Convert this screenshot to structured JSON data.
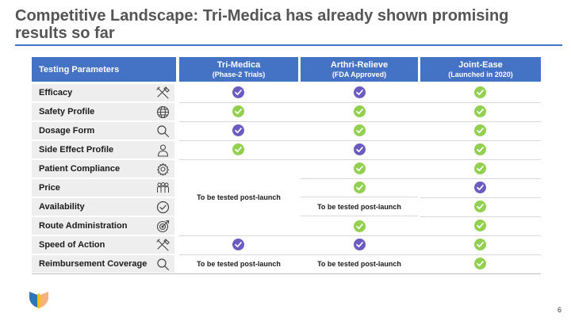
{
  "slide": {
    "title": "Competitive Landscape: Tri-Medica has already shown promising results so far",
    "page_number": "6"
  },
  "table": {
    "param_header": "Testing Parameters",
    "columns": [
      {
        "name": "Tri-Medica",
        "sub": "(Phase-2 Trials)"
      },
      {
        "name": "Arthri-Relieve",
        "sub": "(FDA Approved)"
      },
      {
        "name": "Joint-Ease",
        "sub": "(Launched in 2020)"
      }
    ],
    "rows": [
      {
        "label": "Efficacy",
        "icon": "tools-icon",
        "cells": [
          "purple-check",
          "purple-check",
          "green-check"
        ]
      },
      {
        "label": "Safety Profile",
        "icon": "globe-icon",
        "cells": [
          "green-check",
          "green-check",
          "green-check"
        ]
      },
      {
        "label": "Dosage Form",
        "icon": "magnifier-icon",
        "cells": [
          "purple-check",
          "green-check",
          "green-check"
        ]
      },
      {
        "label": "Side Effect Profile",
        "icon": "person-icon",
        "cells": [
          "green-check",
          "purple-check",
          "green-check"
        ]
      },
      {
        "label": "Patient Compliance",
        "icon": "gear-icon",
        "cells": [
          "note",
          "green-check",
          "green-check"
        ]
      },
      {
        "label": "Price",
        "icon": "people-icon",
        "cells": [
          "note",
          "green-check",
          "purple-check"
        ]
      },
      {
        "label": "Availability",
        "icon": "check-circle-icon",
        "cells": [
          "note",
          "note",
          "green-check"
        ]
      },
      {
        "label": "Route Administration",
        "icon": "target-icon",
        "cells": [
          "note",
          "green-check",
          "green-check"
        ]
      },
      {
        "label": "Speed of Action",
        "icon": "tools-icon",
        "cells": [
          "purple-check",
          "purple-check",
          "green-check"
        ]
      },
      {
        "label": "Reimbursement Coverage",
        "icon": "magnifier-icon",
        "cells": [
          "note",
          "note",
          "green-check"
        ]
      }
    ],
    "notes": {
      "tri_medica_merged": "To be tested post-launch",
      "arthri_availability": "To be tested post-launch",
      "tri_medica_reimbursement": "To be tested post-launch",
      "arthri_reimbursement": "To be tested post-launch"
    }
  },
  "colors": {
    "header_blue": "#4472C4",
    "check_green": "#92D050",
    "check_purple": "#6C5BC0",
    "title_gray": "#555555"
  }
}
